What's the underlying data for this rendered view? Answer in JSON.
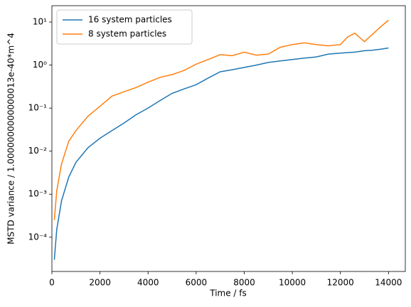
{
  "chart_data": {
    "type": "line",
    "xlabel": "Time / fs",
    "ylabel": "MSTD variance / 1.0000000000000013e-40*m^4",
    "x": [
      100,
      200,
      400,
      700,
      1000,
      1500,
      2000,
      2500,
      3000,
      3500,
      4000,
      4500,
      5000,
      5500,
      6000,
      6500,
      7000,
      7500,
      8000,
      8500,
      9000,
      9500,
      10000,
      10500,
      11000,
      11500,
      12000,
      12300,
      12600,
      13000,
      13300,
      13700,
      14000
    ],
    "series": [
      {
        "name": "16 system particles",
        "color": "#1f77b4",
        "values": [
          3e-05,
          0.00015,
          0.0007,
          0.0025,
          0.0055,
          0.012,
          0.02,
          0.03,
          0.045,
          0.07,
          0.1,
          0.15,
          0.22,
          0.28,
          0.35,
          0.5,
          0.7,
          0.78,
          0.88,
          1.0,
          1.15,
          1.25,
          1.35,
          1.45,
          1.55,
          1.8,
          1.9,
          1.95,
          2.0,
          2.15,
          2.2,
          2.35,
          2.5
        ]
      },
      {
        "name": "8 system particles",
        "color": "#ff7f0e",
        "values": [
          0.00025,
          0.0012,
          0.005,
          0.017,
          0.03,
          0.065,
          0.11,
          0.19,
          0.24,
          0.3,
          0.4,
          0.52,
          0.6,
          0.75,
          1.05,
          1.35,
          1.75,
          1.65,
          2.0,
          1.7,
          1.8,
          2.6,
          3.0,
          3.3,
          3.0,
          2.8,
          3.0,
          4.5,
          5.5,
          3.5,
          5,
          8,
          11
        ]
      }
    ],
    "xlim": [
      0,
      14700
    ],
    "xticks": [
      0,
      2000,
      4000,
      6000,
      8000,
      10000,
      12000,
      14000
    ],
    "ylim": [
      1.6e-05,
      24
    ],
    "yticks": [
      {
        "value": 0.0001,
        "label": "10⁻⁴"
      },
      {
        "value": 0.001,
        "label": "10⁻³"
      },
      {
        "value": 0.01,
        "label": "10⁻²"
      },
      {
        "value": 0.1,
        "label": "10⁻¹"
      },
      {
        "value": 1,
        "label": "10⁰"
      },
      {
        "value": 10,
        "label": "10¹"
      }
    ],
    "log_y": true,
    "legend": "upper left"
  }
}
